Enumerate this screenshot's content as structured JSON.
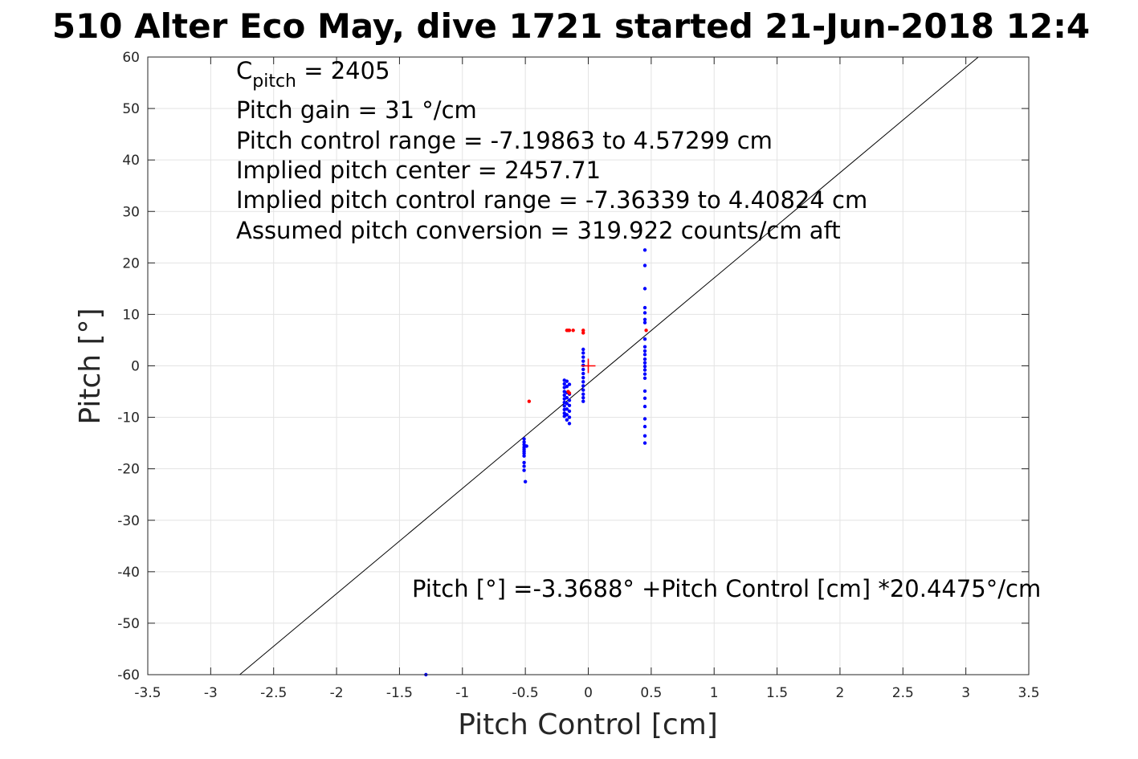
{
  "chart_data": {
    "type": "scatter",
    "title": "510 Alter Eco May, dive 1721 started 21-Jun-2018 12:4",
    "xlabel": "Pitch Control [cm]",
    "ylabel": "Pitch [°]",
    "xlim": [
      -3.5,
      3.5
    ],
    "ylim": [
      -60,
      60
    ],
    "grid": true,
    "x_ticks": [
      -3.5,
      -3,
      -2.5,
      -2,
      -1.5,
      -1,
      -0.5,
      0,
      0.5,
      1,
      1.5,
      2,
      2.5,
      3,
      3.5
    ],
    "x_tick_labels": [
      "-3.5",
      "-3",
      "-2.5",
      "-2",
      "-1.5",
      "-1",
      "-0.5",
      "0",
      "0.5",
      "1",
      "1.5",
      "2",
      "2.5",
      "3",
      "3.5"
    ],
    "y_ticks": [
      -60,
      -50,
      -40,
      -30,
      -20,
      -10,
      0,
      10,
      20,
      30,
      40,
      50,
      60
    ],
    "y_tick_labels": [
      "-60",
      "-50",
      "-40",
      "-30",
      "-20",
      "-10",
      "0",
      "10",
      "20",
      "30",
      "40",
      "50",
      "60"
    ],
    "annotations": {
      "c_pitch_base": "C",
      "c_pitch_sub": "pitch",
      "c_pitch_value": " = 2405",
      "line2": "Pitch gain = 31 °/cm",
      "line3": "Pitch control range = -7.19863 to 4.57299 cm",
      "line4": "Implied pitch center = 2457.71",
      "line5": "Implied pitch control range = -7.36339 to 4.40824 cm",
      "line6": "Assumed pitch conversion = 319.922 counts/cm aft",
      "fit_equation": "Pitch [°] =-3.3688° +Pitch Control [cm] *20.4475°/cm"
    },
    "fit_line": {
      "intercept": -3.3688,
      "slope": 20.4475,
      "color": "#000000"
    },
    "center_marker": {
      "x": 0,
      "y": 0,
      "color": "#ff0000"
    },
    "series": [
      {
        "color": "#0000ff",
        "points": [
          [
            -1.29,
            -60
          ],
          [
            -0.51,
            -14.2
          ],
          [
            -0.51,
            -14.8
          ],
          [
            -0.51,
            -15.3
          ],
          [
            -0.51,
            -15.8
          ],
          [
            -0.51,
            -16.2
          ],
          [
            -0.51,
            -16.6
          ],
          [
            -0.51,
            -17.0
          ],
          [
            -0.51,
            -17.5
          ],
          [
            -0.51,
            -18.8
          ],
          [
            -0.51,
            -19.5
          ],
          [
            -0.51,
            -20.3
          ],
          [
            -0.5,
            -22.5
          ],
          [
            -0.49,
            -15.6
          ],
          [
            -0.19,
            -2.8
          ],
          [
            -0.19,
            -3.5
          ],
          [
            -0.19,
            -4.2
          ],
          [
            -0.19,
            -5.0
          ],
          [
            -0.19,
            -5.7
          ],
          [
            -0.19,
            -6.4
          ],
          [
            -0.19,
            -7.1
          ],
          [
            -0.19,
            -7.8
          ],
          [
            -0.19,
            -8.5
          ],
          [
            -0.19,
            -9.2
          ],
          [
            -0.19,
            -9.8
          ],
          [
            -0.17,
            -3.0
          ],
          [
            -0.17,
            -4.0
          ],
          [
            -0.17,
            -5.2
          ],
          [
            -0.17,
            -6.2
          ],
          [
            -0.17,
            -7.3
          ],
          [
            -0.17,
            -8.4
          ],
          [
            -0.17,
            -9.5
          ],
          [
            -0.17,
            -10.5
          ],
          [
            -0.15,
            -3.6
          ],
          [
            -0.15,
            -5.5
          ],
          [
            -0.15,
            -6.7
          ],
          [
            -0.15,
            -7.7
          ],
          [
            -0.15,
            -8.8
          ],
          [
            -0.15,
            -10.0
          ],
          [
            -0.15,
            -11.2
          ],
          [
            -0.04,
            3.2
          ],
          [
            -0.04,
            2.5
          ],
          [
            -0.04,
            1.7
          ],
          [
            -0.04,
            0.9
          ],
          [
            -0.04,
            0.1
          ],
          [
            -0.04,
            -0.7
          ],
          [
            -0.04,
            -1.5
          ],
          [
            -0.04,
            -2.3
          ],
          [
            -0.04,
            -3.1
          ],
          [
            -0.04,
            -3.9
          ],
          [
            -0.04,
            -4.7
          ],
          [
            -0.04,
            -5.5
          ],
          [
            -0.04,
            -6.2
          ],
          [
            -0.04,
            -6.9
          ],
          [
            0.45,
            22.5
          ],
          [
            0.45,
            19.5
          ],
          [
            0.45,
            15.0
          ],
          [
            0.45,
            11.3
          ],
          [
            0.45,
            10.3
          ],
          [
            0.45,
            9.0
          ],
          [
            0.45,
            8.4
          ],
          [
            0.45,
            5.2
          ],
          [
            0.45,
            3.7
          ],
          [
            0.45,
            2.9
          ],
          [
            0.45,
            2.2
          ],
          [
            0.45,
            1.3
          ],
          [
            0.45,
            0.6
          ],
          [
            0.45,
            -0.1
          ],
          [
            0.45,
            -0.8
          ],
          [
            0.45,
            -1.6
          ],
          [
            0.45,
            -2.4
          ],
          [
            0.45,
            -4.9
          ],
          [
            0.45,
            -6.3
          ],
          [
            0.45,
            -7.9
          ],
          [
            0.45,
            -10.3
          ],
          [
            0.45,
            -11.8
          ],
          [
            0.45,
            -13.6
          ],
          [
            0.45,
            -15.0
          ]
        ]
      },
      {
        "color": "#ff0000",
        "points": [
          [
            -0.47,
            -6.9
          ],
          [
            -0.17,
            6.9
          ],
          [
            -0.16,
            6.9
          ],
          [
            -0.15,
            6.9
          ],
          [
            -0.12,
            6.9
          ],
          [
            -0.16,
            -5.0
          ],
          [
            -0.15,
            -5.3
          ],
          [
            -0.04,
            6.9
          ],
          [
            -0.04,
            6.4
          ],
          [
            0.46,
            6.9
          ]
        ]
      }
    ]
  }
}
